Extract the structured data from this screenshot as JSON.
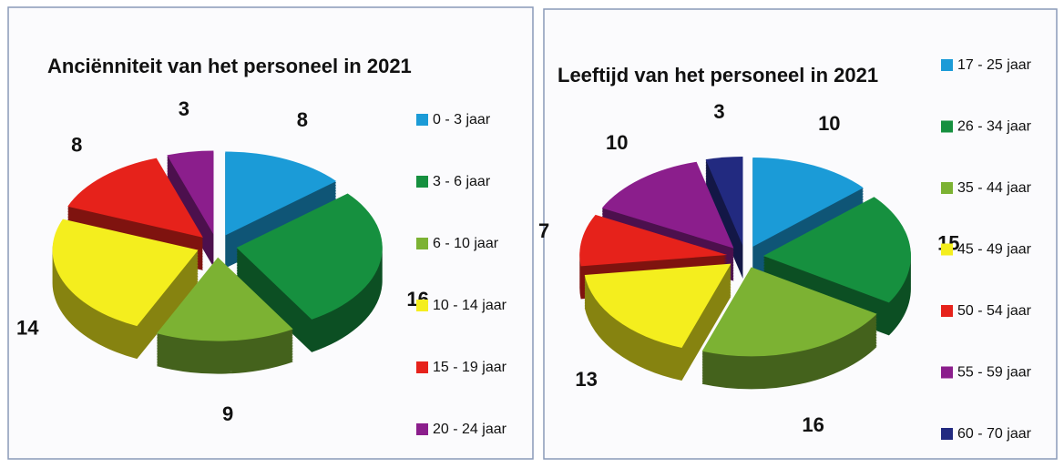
{
  "chart_data": [
    {
      "type": "pie3d",
      "title": "Anciënniteit van het personeel in 2021",
      "categories": [
        "0 - 3 jaar",
        "3 - 6 jaar",
        "6 - 10 jaar",
        "10 - 14 jaar",
        "15 - 19 jaar",
        "20 - 24 jaar"
      ],
      "values": [
        8,
        16,
        9,
        14,
        8,
        3
      ],
      "colors": [
        "#1b9bd7",
        "#16903f",
        "#7cb233",
        "#f4ee1e",
        "#e6221b",
        "#8b1e8c"
      ]
    },
    {
      "type": "pie3d",
      "title": "Leeftijd van het personeel in 2021",
      "categories": [
        "17 - 25 jaar",
        "26 - 34 jaar",
        "35 - 44 jaar",
        "45 - 49 jaar",
        "50 - 54 jaar",
        "55 - 59 jaar",
        "60 - 70 jaar"
      ],
      "values": [
        10,
        15,
        16,
        13,
        7,
        10,
        3
      ],
      "colors": [
        "#1b9bd7",
        "#16903f",
        "#7cb233",
        "#f4ee1e",
        "#e6221b",
        "#8b1e8c",
        "#222a80"
      ]
    }
  ]
}
